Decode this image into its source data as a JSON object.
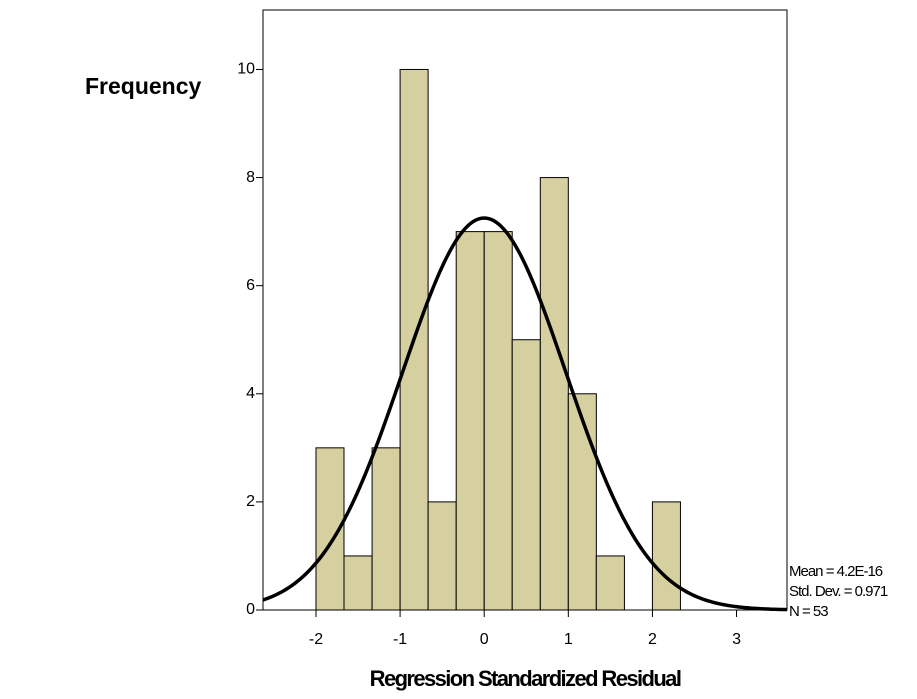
{
  "chart_data": {
    "type": "histogram",
    "y_label": "Frequency",
    "x_label": "Regression Standardized Residual",
    "bins": [
      -2,
      -1.667,
      -1.333,
      -1,
      -0.667,
      -0.333,
      0,
      0.333,
      0.667,
      1,
      1.333,
      1.667,
      2,
      2.333
    ],
    "values": [
      3,
      1,
      3,
      10,
      2,
      7,
      7,
      5,
      8,
      4,
      1,
      0,
      2
    ],
    "color": "#d6cf9f",
    "xlim": [
      -2.63,
      3.6
    ],
    "ylim": [
      0,
      11.1
    ],
    "xticks": [
      -2,
      -1,
      0,
      1,
      2,
      3
    ],
    "yticks": [
      0,
      2,
      4,
      6,
      8,
      10
    ],
    "normal_curve": {
      "mean": {
        "value": 4.2e-16,
        "label": "Mean = 4.2E-16"
      },
      "std_dev": {
        "value": 0.971,
        "label": "Std. Dev. = 0.971"
      },
      "n": {
        "value": 53,
        "label": "N = 53"
      }
    }
  }
}
